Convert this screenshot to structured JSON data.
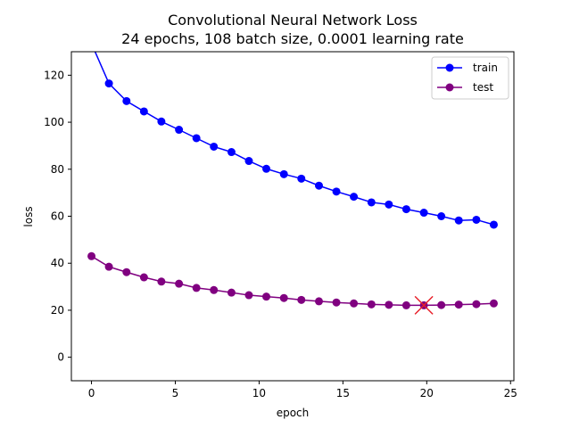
{
  "chart_data": {
    "type": "line",
    "title": "Convolutional Neural Network Loss",
    "subtitle": "24 epochs, 108 batch size, 0.0001 learning rate",
    "xlabel": "epoch",
    "ylabel": "loss",
    "xlim": [
      -1.2,
      25.2
    ],
    "ylim": [
      -10,
      130
    ],
    "xticks": [
      0,
      5,
      10,
      15,
      20,
      25
    ],
    "yticks": [
      0,
      20,
      40,
      60,
      80,
      100,
      120
    ],
    "grid": false,
    "legend_position": "top-right",
    "series": [
      {
        "name": "train",
        "color": "#0000ff",
        "marker": "circle",
        "x": [
          0,
          1.04,
          2.09,
          3.13,
          4.17,
          5.22,
          6.26,
          7.3,
          8.35,
          9.39,
          10.43,
          11.48,
          12.52,
          13.57,
          14.61,
          15.65,
          16.7,
          17.74,
          18.78,
          19.83,
          20.87,
          21.91,
          22.96,
          24
        ],
        "y": [
          133.5,
          116.5,
          109,
          104.6,
          100.3,
          96.8,
          93.2,
          89.6,
          87.3,
          83.5,
          80.2,
          77.9,
          76,
          73,
          70.5,
          68.3,
          65.9,
          65,
          63,
          61.5,
          60,
          58.2,
          58.5,
          56.4
        ]
      },
      {
        "name": "test",
        "color": "#800080",
        "marker": "circle",
        "x": [
          0,
          1.04,
          2.09,
          3.13,
          4.17,
          5.22,
          6.26,
          7.3,
          8.35,
          9.39,
          10.43,
          11.48,
          12.52,
          13.57,
          14.61,
          15.65,
          16.7,
          17.74,
          18.78,
          19.83,
          20.87,
          21.91,
          22.96,
          24
        ],
        "y": [
          43,
          38.5,
          36.2,
          34,
          32.2,
          31.3,
          29.5,
          28.6,
          27.5,
          26.4,
          25.8,
          25.2,
          24.4,
          23.8,
          23.3,
          22.9,
          22.5,
          22.3,
          22.1,
          22.1,
          22.2,
          22.4,
          22.6,
          22.9
        ]
      }
    ],
    "annotations": [
      {
        "type": "x-marker",
        "x": 19.83,
        "y": 22.1,
        "color": "#e8202a"
      }
    ]
  }
}
